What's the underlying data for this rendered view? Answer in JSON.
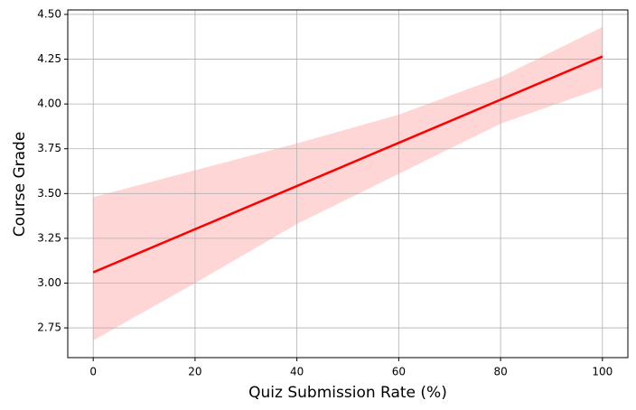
{
  "chart_data": {
    "type": "line",
    "xlabel": "Quiz Submission Rate (%)",
    "ylabel": "Course Grade",
    "x": [
      0,
      100
    ],
    "series": [
      {
        "color": "#ff0000",
        "values": [
          3.06,
          4.265
        ]
      }
    ],
    "band": {
      "x": [
        0,
        20,
        40,
        60,
        80,
        100
      ],
      "upper": [
        3.48,
        3.63,
        3.78,
        3.94,
        4.15,
        4.43
      ],
      "lower": [
        2.68,
        3.0,
        3.33,
        3.61,
        3.89,
        4.09
      ],
      "color": "#ffd6d6"
    },
    "xlim": [
      -5,
      105
    ],
    "xticks": [
      0,
      20,
      40,
      60,
      80,
      100
    ],
    "ylim": [
      2.584,
      4.525
    ],
    "yticks": [
      2.75,
      {
        "value": 3,
        "label": "3.00"
      },
      3.25,
      {
        "value": 3.5,
        "label": "3.50"
      },
      3.75,
      {
        "value": 4,
        "label": "4.00"
      },
      4.25,
      {
        "value": 4.5,
        "label": "4.50"
      }
    ],
    "grid": true
  }
}
